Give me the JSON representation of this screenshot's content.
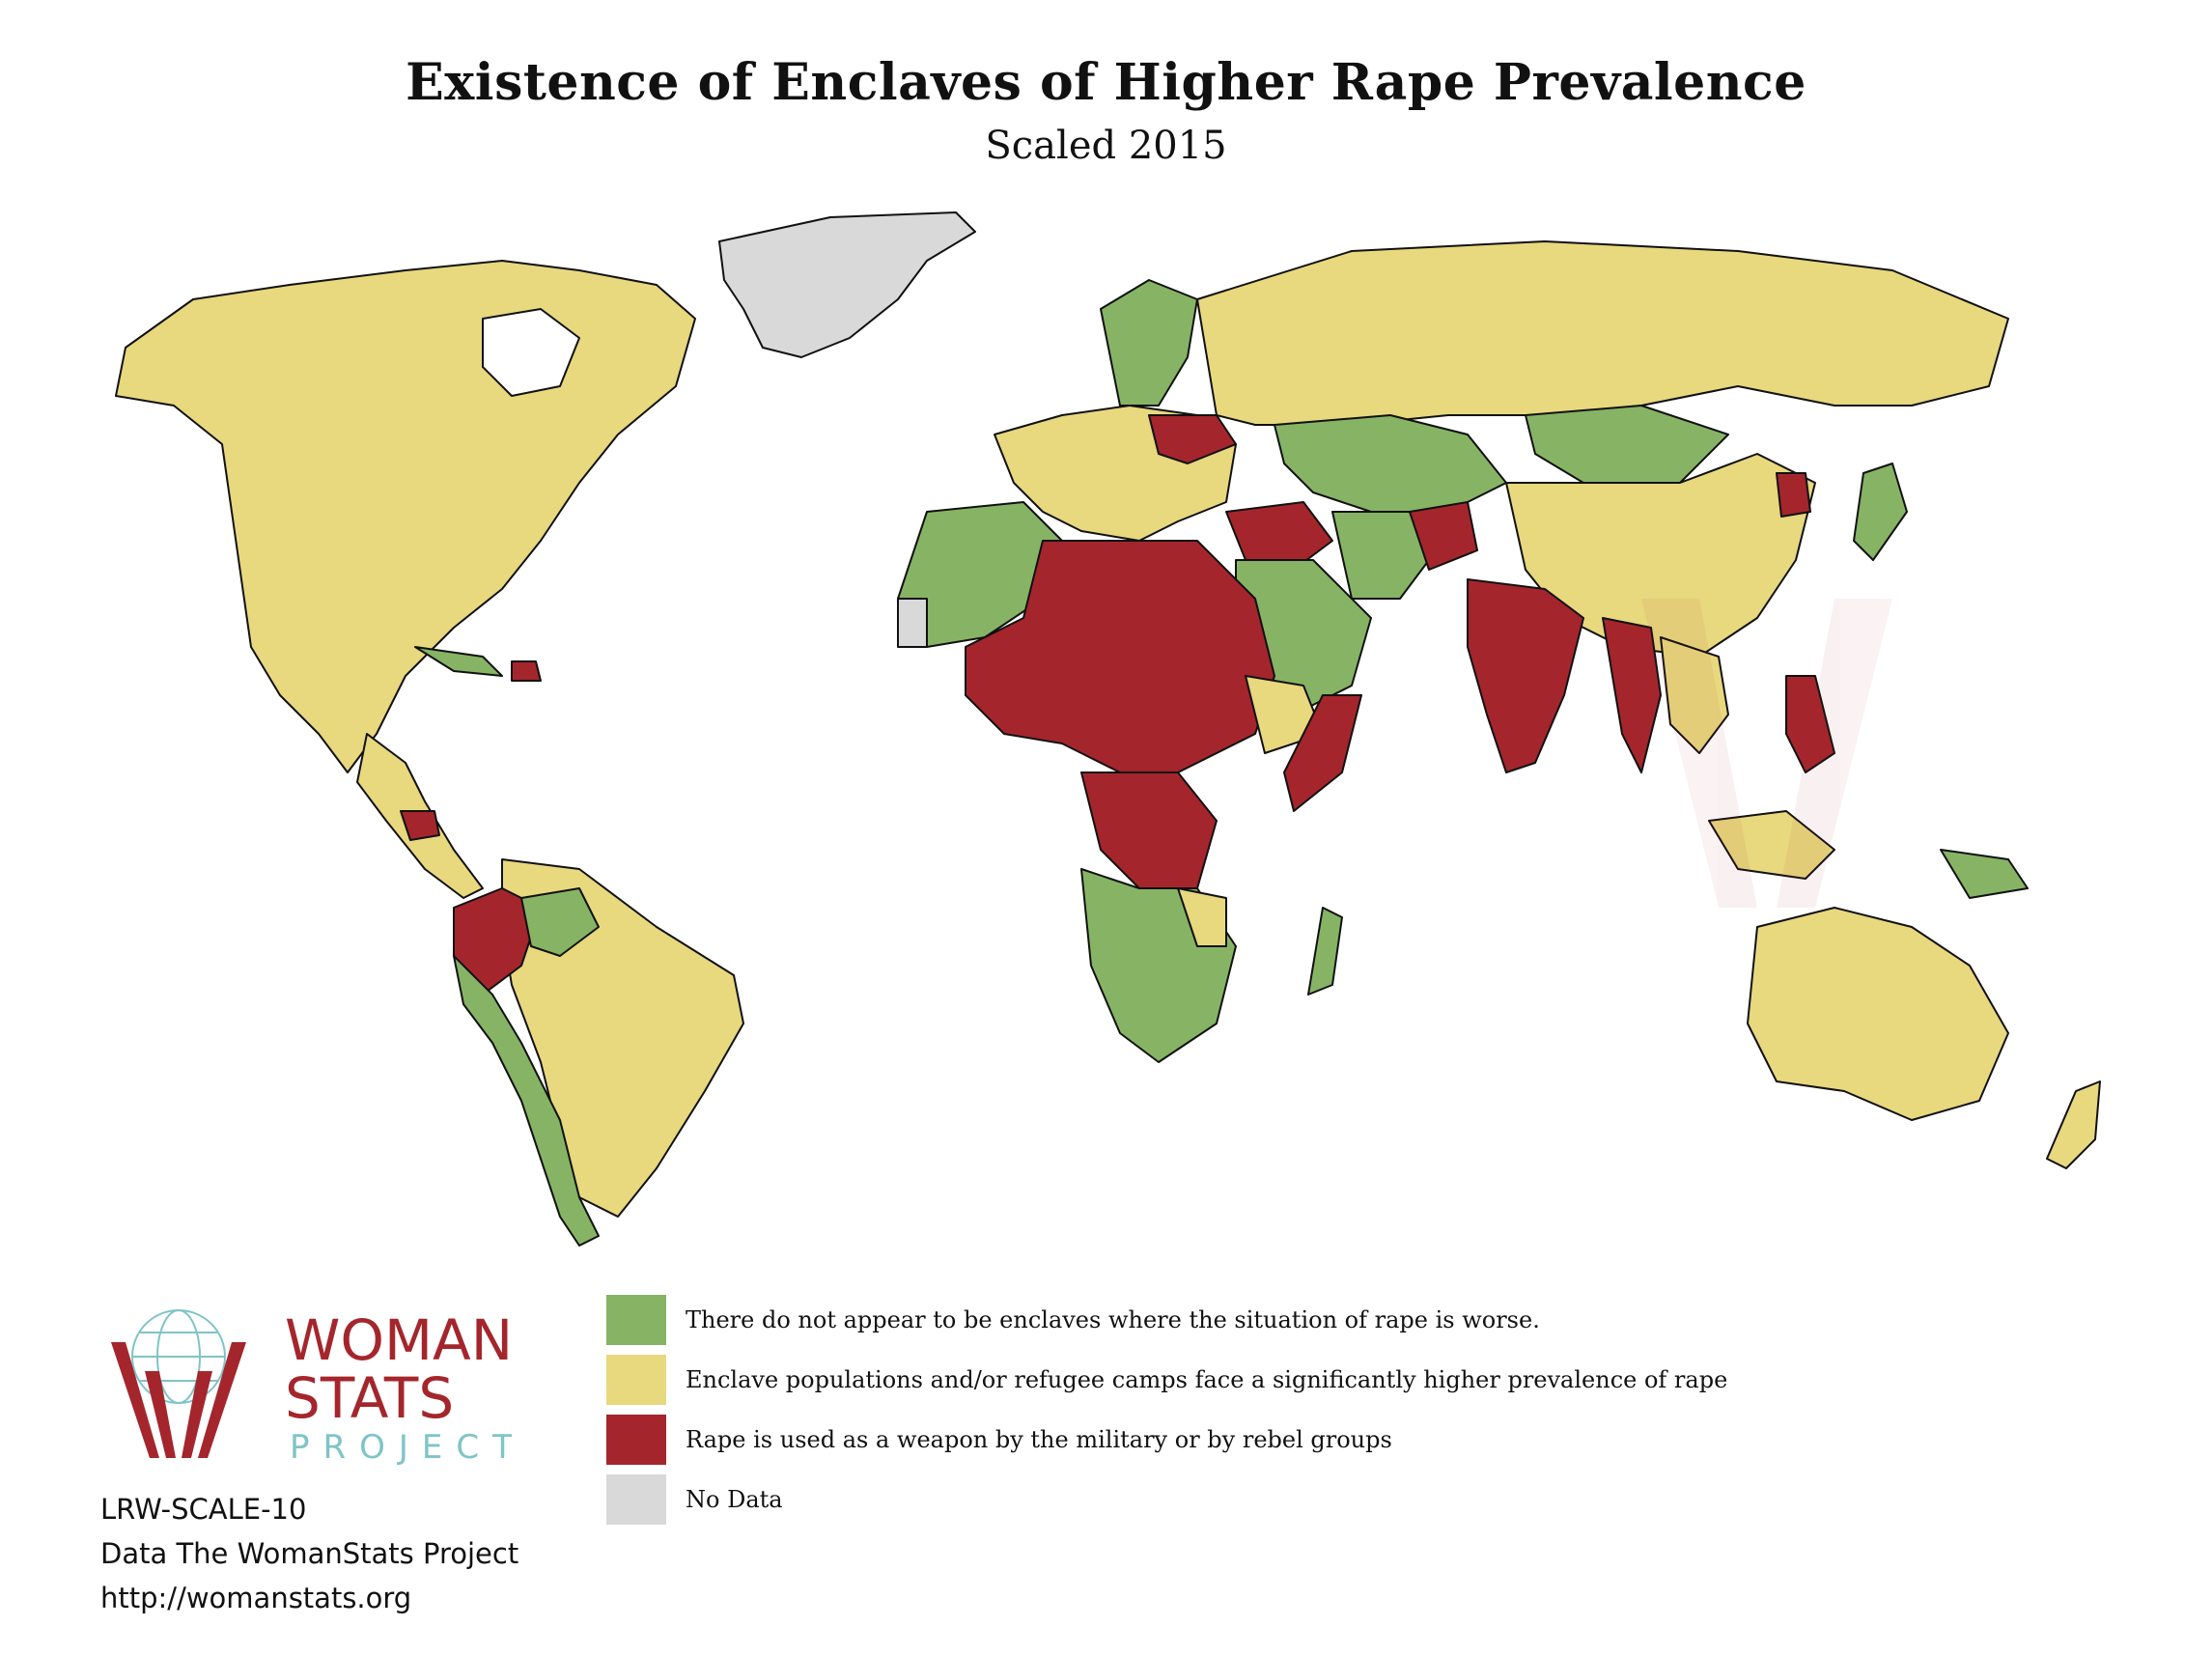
{
  "header": {
    "title": "Existence of Enclaves of Higher Rape Prevalence",
    "subtitle": "Scaled 2015"
  },
  "legend": [
    {
      "color": "#86b464",
      "label": "There do not appear to be enclaves where the situation of rape is worse."
    },
    {
      "color": "#e8d87e",
      "label": "Enclave populations and/or refugee camps face a significantly higher prevalence of rape"
    },
    {
      "color": "#a4262c",
      "label": "Rape is used as a weapon by the military or by rebel groups"
    },
    {
      "color": "#d9d9d9",
      "label": "No Data"
    }
  ],
  "logo": {
    "line1": "WOMAN",
    "line2": "STATS",
    "line3": "PROJECT"
  },
  "notes": {
    "code": "LRW-SCALE-10",
    "source": "Data The WomanStats Project",
    "url": "http://womanstats.org"
  },
  "colors": {
    "green": "#86b464",
    "yellow": "#e8d87e",
    "red": "#a4262c",
    "gray": "#d9d9d9",
    "outline": "#111111"
  }
}
